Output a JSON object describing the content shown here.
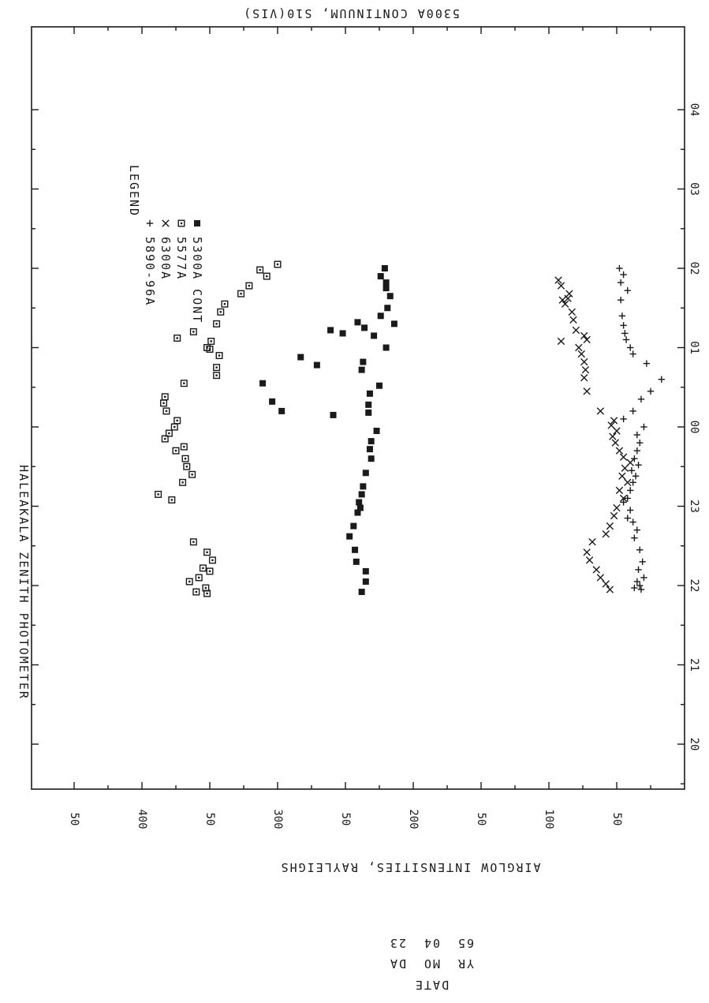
{
  "chart_data": {
    "type": "scatter",
    "orientation": "rotated 90 degrees clockwise (time axis runs along the right edge, intensity axis along the bottom)",
    "title": "HALEAKALA ZENITH PHOTOMETER",
    "xlabel": "",
    "x_tick_labels": [
      "20",
      "21",
      "22",
      "23",
      "00",
      "01",
      "02",
      "03",
      "04"
    ],
    "xlim": [
      19.5,
      28.5
    ],
    "left_axis_label": "AIRGLOW INTENSITIES, RAYLEIGHS",
    "right_axis_label": "5300A CONTINUUM, S10(VIS)",
    "intensity_tick_labels": [
      "50",
      "100",
      "50",
      "200",
      "50",
      "300",
      "50",
      "400",
      "50"
    ],
    "intensity_tick_values": [
      50,
      100,
      150,
      200,
      250,
      300,
      350,
      400,
      450
    ],
    "ylim": [
      0,
      475
    ],
    "grid": false,
    "legend_title": "LEGEND",
    "legend_position": "top-left",
    "date": {
      "header": "DATE",
      "columns": [
        "YR",
        "MO",
        "DA"
      ],
      "values": [
        "65",
        "04",
        "23"
      ]
    },
    "series": [
      {
        "name": "5890-96A",
        "marker": "plus",
        "points": [
          [
            21.95,
            32
          ],
          [
            21.97,
            37
          ],
          [
            22.0,
            33
          ],
          [
            22.05,
            35
          ],
          [
            22.1,
            30
          ],
          [
            22.2,
            34
          ],
          [
            22.3,
            31
          ],
          [
            22.45,
            33
          ],
          [
            22.6,
            37
          ],
          [
            22.7,
            35
          ],
          [
            22.8,
            38
          ],
          [
            22.85,
            42
          ],
          [
            22.95,
            40
          ],
          [
            23.05,
            45
          ],
          [
            23.1,
            42
          ],
          [
            23.2,
            40
          ],
          [
            23.3,
            38
          ],
          [
            23.38,
            36
          ],
          [
            23.45,
            39
          ],
          [
            23.52,
            34
          ],
          [
            23.6,
            37
          ],
          [
            23.7,
            35
          ],
          [
            23.8,
            33
          ],
          [
            23.9,
            35
          ],
          [
            24.0,
            30
          ],
          [
            24.1,
            45
          ],
          [
            24.2,
            38
          ],
          [
            24.35,
            32
          ],
          [
            24.45,
            25
          ],
          [
            24.6,
            17
          ],
          [
            24.8,
            28
          ],
          [
            24.92,
            38
          ],
          [
            25.0,
            40
          ],
          [
            25.1,
            43
          ],
          [
            25.18,
            44
          ],
          [
            25.28,
            45
          ],
          [
            25.4,
            46
          ],
          [
            25.6,
            47
          ],
          [
            25.72,
            42
          ],
          [
            25.82,
            47
          ],
          [
            25.92,
            45
          ],
          [
            26.0,
            48
          ]
        ]
      },
      {
        "name": "6300A",
        "marker": "cross",
        "points": [
          [
            21.95,
            55
          ],
          [
            22.02,
            58
          ],
          [
            22.1,
            62
          ],
          [
            22.2,
            65
          ],
          [
            22.32,
            70
          ],
          [
            22.42,
            72
          ],
          [
            22.55,
            68
          ],
          [
            22.65,
            58
          ],
          [
            22.75,
            55
          ],
          [
            22.88,
            52
          ],
          [
            22.98,
            50
          ],
          [
            23.1,
            45
          ],
          [
            23.2,
            48
          ],
          [
            23.3,
            42
          ],
          [
            23.38,
            46
          ],
          [
            23.48,
            44
          ],
          [
            23.55,
            40
          ],
          [
            23.62,
            45
          ],
          [
            23.7,
            48
          ],
          [
            23.8,
            51
          ],
          [
            23.88,
            53
          ],
          [
            23.95,
            50
          ],
          [
            24.02,
            54
          ],
          [
            24.08,
            52
          ],
          [
            24.2,
            62
          ],
          [
            24.45,
            72
          ],
          [
            24.62,
            74
          ],
          [
            24.72,
            73
          ],
          [
            24.82,
            74
          ],
          [
            24.92,
            76
          ],
          [
            25.0,
            78
          ],
          [
            25.1,
            72
          ],
          [
            25.15,
            74
          ],
          [
            25.22,
            80
          ],
          [
            25.35,
            82
          ],
          [
            25.45,
            83
          ],
          [
            25.55,
            88
          ],
          [
            25.6,
            90
          ],
          [
            25.62,
            86
          ],
          [
            25.68,
            85
          ],
          [
            25.78,
            91
          ],
          [
            25.85,
            93
          ],
          [
            25.08,
            91
          ]
        ]
      },
      {
        "name": "5577A",
        "marker": "square",
        "points": [
          [
            21.92,
            360
          ],
          [
            21.97,
            353
          ],
          [
            21.9,
            352
          ],
          [
            22.05,
            365
          ],
          [
            22.1,
            358
          ],
          [
            22.18,
            350
          ],
          [
            22.22,
            355
          ],
          [
            22.32,
            348
          ],
          [
            22.42,
            352
          ],
          [
            22.55,
            362
          ],
          [
            23.08,
            378
          ],
          [
            23.15,
            388
          ],
          [
            23.3,
            370
          ],
          [
            23.4,
            363
          ],
          [
            23.5,
            367
          ],
          [
            23.6,
            368
          ],
          [
            23.7,
            375
          ],
          [
            23.75,
            369
          ],
          [
            23.85,
            383
          ],
          [
            23.92,
            380
          ],
          [
            24.0,
            376
          ],
          [
            24.08,
            374
          ],
          [
            24.2,
            382
          ],
          [
            24.3,
            384
          ],
          [
            24.38,
            383
          ],
          [
            24.55,
            369
          ],
          [
            24.65,
            345
          ],
          [
            24.75,
            345
          ],
          [
            24.9,
            343
          ],
          [
            24.98,
            350
          ],
          [
            25.12,
            374
          ],
          [
            25.2,
            362
          ],
          [
            25.3,
            345
          ],
          [
            25.45,
            342
          ],
          [
            25.55,
            339
          ],
          [
            25.68,
            327
          ],
          [
            25.78,
            321
          ],
          [
            25.9,
            308
          ],
          [
            25.98,
            313
          ],
          [
            26.05,
            300
          ],
          [
            25.0,
            352
          ],
          [
            25.08,
            349
          ]
        ]
      },
      {
        "name": "5300A CONT",
        "marker": "filled-square",
        "points": [
          [
            21.92,
            238
          ],
          [
            22.05,
            235
          ],
          [
            22.18,
            235
          ],
          [
            22.3,
            242
          ],
          [
            22.45,
            243
          ],
          [
            22.62,
            247
          ],
          [
            22.75,
            244
          ],
          [
            22.92,
            241
          ],
          [
            22.98,
            239
          ],
          [
            23.05,
            240
          ],
          [
            23.15,
            238
          ],
          [
            23.25,
            237
          ],
          [
            23.42,
            235
          ],
          [
            23.6,
            231
          ],
          [
            23.72,
            232
          ],
          [
            23.82,
            231
          ],
          [
            23.95,
            227
          ],
          [
            24.18,
            233
          ],
          [
            24.28,
            233
          ],
          [
            24.42,
            232
          ],
          [
            24.52,
            225
          ],
          [
            24.72,
            238
          ],
          [
            24.82,
            237
          ],
          [
            25.0,
            220
          ],
          [
            25.15,
            229
          ],
          [
            25.3,
            214
          ],
          [
            25.4,
            224
          ],
          [
            25.5,
            219
          ],
          [
            25.65,
            217
          ],
          [
            25.75,
            220
          ],
          [
            25.82,
            220
          ],
          [
            25.9,
            224
          ],
          [
            26.0,
            221
          ],
          [
            25.25,
            236
          ],
          [
            25.32,
            241
          ],
          [
            25.22,
            261
          ],
          [
            25.18,
            252
          ],
          [
            24.88,
            283
          ],
          [
            24.78,
            271
          ],
          [
            24.15,
            259
          ],
          [
            24.32,
            304
          ],
          [
            24.55,
            311
          ],
          [
            24.2,
            297
          ]
        ]
      }
    ]
  }
}
